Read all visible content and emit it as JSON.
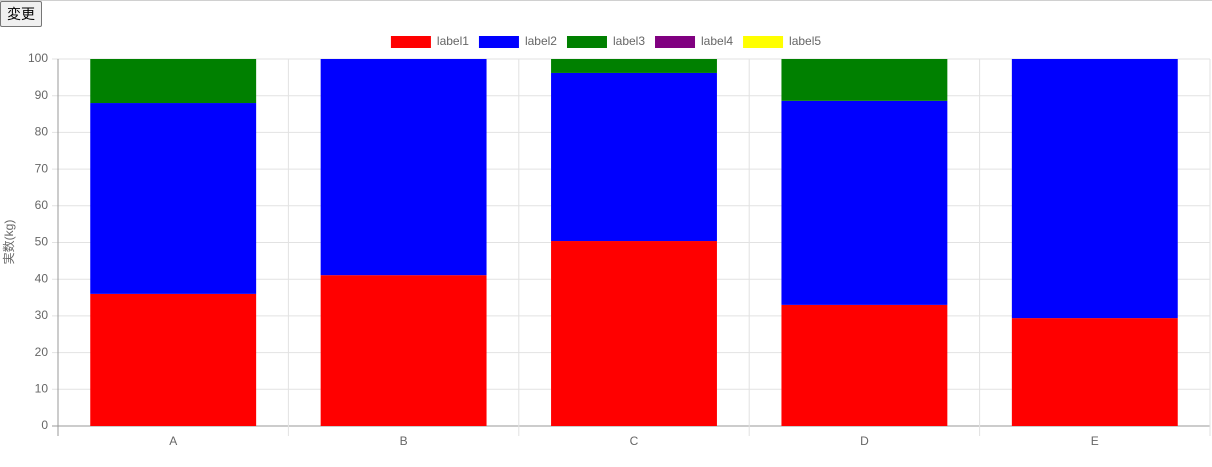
{
  "button": {
    "label": "変更"
  },
  "chart_data": {
    "type": "stacked_bar",
    "y_label": "実数(kg)",
    "categories": [
      "A",
      "B",
      "C",
      "D",
      "E"
    ],
    "series": [
      {
        "name": "label1",
        "color": "#ff0000",
        "values": [
          36,
          41.1,
          50.4,
          33,
          29.4
        ]
      },
      {
        "name": "label2",
        "color": "#0000ff",
        "values": [
          52,
          58.9,
          45.8,
          55.6,
          70.6
        ]
      },
      {
        "name": "label3",
        "color": "#008000",
        "values": [
          12,
          0,
          3.8,
          11.4,
          0
        ]
      },
      {
        "name": "label4",
        "color": "#800080",
        "values": [
          0,
          0,
          0,
          0,
          0
        ]
      },
      {
        "name": "label5",
        "color": "#ffff00",
        "values": [
          0,
          0,
          0,
          0,
          0
        ]
      }
    ],
    "ylim": [
      0,
      100
    ],
    "yticks": [
      0,
      10,
      20,
      30,
      40,
      50,
      60,
      70,
      80,
      90,
      100
    ],
    "grid": true,
    "legend": "top"
  }
}
